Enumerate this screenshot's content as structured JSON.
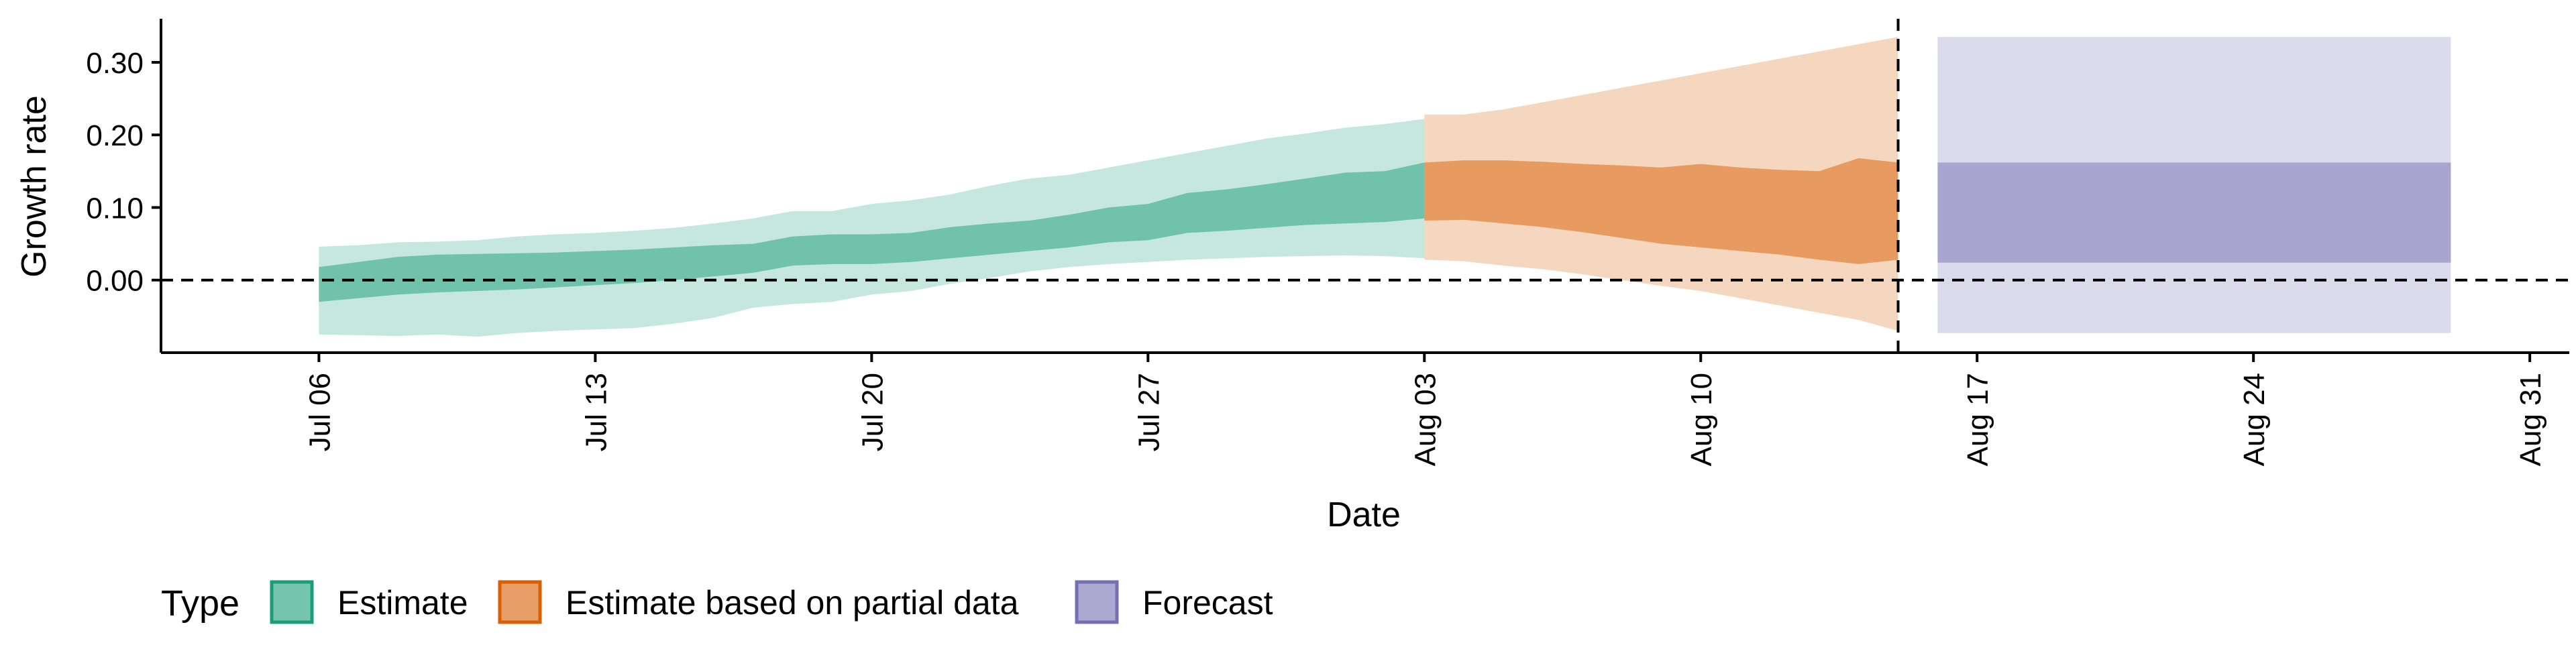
{
  "chart_data": {
    "type": "area",
    "xlabel": "Date",
    "ylabel": "Growth rate",
    "x_ticks": [
      "2020-07-06",
      "2020-07-13",
      "2020-07-20",
      "2020-07-27",
      "2020-08-03",
      "2020-08-10",
      "2020-08-17",
      "2020-08-24",
      "2020-08-31"
    ],
    "x_tick_labels": [
      "Jul 06",
      "Jul 13",
      "Jul 20",
      "Jul 27",
      "Aug 03",
      "Aug 10",
      "Aug 17",
      "Aug 24",
      "Aug 31"
    ],
    "y_ticks": [
      0.0,
      0.1,
      0.2,
      0.3
    ],
    "y_tick_labels": [
      "0.00",
      "0.10",
      "0.20",
      "0.30"
    ],
    "xlim": [
      "2020-07-02",
      "2020-09-01"
    ],
    "ylim": [
      -0.1,
      0.36
    ],
    "hline_y": 0,
    "vline_x": "2020-08-15",
    "grid": false,
    "legend": {
      "title": "Type",
      "position": "bottom-left",
      "entries": [
        "Estimate",
        "Estimate based on partial data",
        "Forecast"
      ]
    },
    "colors": {
      "Estimate": "#1b9e77",
      "Estimate based on partial data": "#d95f02",
      "Forecast": "#7570b3"
    },
    "series": [
      {
        "name": "Estimate",
        "points": [
          {
            "date": "2020-07-06",
            "lo90": -0.075,
            "lo50": -0.03,
            "hi50": 0.018,
            "hi90": 0.046
          },
          {
            "date": "2020-07-07",
            "lo90": -0.076,
            "lo50": -0.025,
            "hi50": 0.025,
            "hi90": 0.048
          },
          {
            "date": "2020-07-08",
            "lo90": -0.077,
            "lo50": -0.02,
            "hi50": 0.032,
            "hi90": 0.052
          },
          {
            "date": "2020-07-09",
            "lo90": -0.075,
            "lo50": -0.017,
            "hi50": 0.035,
            "hi90": 0.053
          },
          {
            "date": "2020-07-10",
            "lo90": -0.078,
            "lo50": -0.015,
            "hi50": 0.036,
            "hi90": 0.055
          },
          {
            "date": "2020-07-11",
            "lo90": -0.073,
            "lo50": -0.013,
            "hi50": 0.037,
            "hi90": 0.06
          },
          {
            "date": "2020-07-12",
            "lo90": -0.07,
            "lo50": -0.01,
            "hi50": 0.038,
            "hi90": 0.063
          },
          {
            "date": "2020-07-13",
            "lo90": -0.068,
            "lo50": -0.007,
            "hi50": 0.04,
            "hi90": 0.065
          },
          {
            "date": "2020-07-14",
            "lo90": -0.066,
            "lo50": -0.004,
            "hi50": 0.042,
            "hi90": 0.068
          },
          {
            "date": "2020-07-15",
            "lo90": -0.06,
            "lo50": 0.0,
            "hi50": 0.045,
            "hi90": 0.072
          },
          {
            "date": "2020-07-16",
            "lo90": -0.052,
            "lo50": 0.005,
            "hi50": 0.048,
            "hi90": 0.078
          },
          {
            "date": "2020-07-17",
            "lo90": -0.038,
            "lo50": 0.01,
            "hi50": 0.05,
            "hi90": 0.085
          },
          {
            "date": "2020-07-18",
            "lo90": -0.033,
            "lo50": 0.02,
            "hi50": 0.06,
            "hi90": 0.095
          },
          {
            "date": "2020-07-19",
            "lo90": -0.03,
            "lo50": 0.022,
            "hi50": 0.063,
            "hi90": 0.095
          },
          {
            "date": "2020-07-20",
            "lo90": -0.02,
            "lo50": 0.022,
            "hi50": 0.063,
            "hi90": 0.105
          },
          {
            "date": "2020-07-21",
            "lo90": -0.015,
            "lo50": 0.025,
            "hi50": 0.065,
            "hi90": 0.11
          },
          {
            "date": "2020-07-22",
            "lo90": -0.005,
            "lo50": 0.03,
            "hi50": 0.073,
            "hi90": 0.118
          },
          {
            "date": "2020-07-23",
            "lo90": 0.003,
            "lo50": 0.035,
            "hi50": 0.078,
            "hi90": 0.13
          },
          {
            "date": "2020-07-24",
            "lo90": 0.012,
            "lo50": 0.04,
            "hi50": 0.082,
            "hi90": 0.14
          },
          {
            "date": "2020-07-25",
            "lo90": 0.018,
            "lo50": 0.045,
            "hi50": 0.09,
            "hi90": 0.145
          },
          {
            "date": "2020-07-26",
            "lo90": 0.022,
            "lo50": 0.052,
            "hi50": 0.1,
            "hi90": 0.155
          },
          {
            "date": "2020-07-27",
            "lo90": 0.025,
            "lo50": 0.055,
            "hi50": 0.105,
            "hi90": 0.165
          },
          {
            "date": "2020-07-28",
            "lo90": 0.028,
            "lo50": 0.065,
            "hi50": 0.12,
            "hi90": 0.175
          },
          {
            "date": "2020-07-29",
            "lo90": 0.03,
            "lo50": 0.068,
            "hi50": 0.125,
            "hi90": 0.185
          },
          {
            "date": "2020-07-30",
            "lo90": 0.032,
            "lo50": 0.072,
            "hi50": 0.132,
            "hi90": 0.195
          },
          {
            "date": "2020-07-31",
            "lo90": 0.033,
            "lo50": 0.076,
            "hi50": 0.14,
            "hi90": 0.202
          },
          {
            "date": "2020-08-01",
            "lo90": 0.034,
            "lo50": 0.078,
            "hi50": 0.148,
            "hi90": 0.21
          },
          {
            "date": "2020-08-02",
            "lo90": 0.033,
            "lo50": 0.08,
            "hi50": 0.15,
            "hi90": 0.215
          },
          {
            "date": "2020-08-03",
            "lo90": 0.03,
            "lo50": 0.085,
            "hi50": 0.162,
            "hi90": 0.222
          }
        ]
      },
      {
        "name": "Estimate based on partial data",
        "points": [
          {
            "date": "2020-08-03",
            "lo90": 0.028,
            "lo50": 0.082,
            "hi50": 0.162,
            "hi90": 0.228
          },
          {
            "date": "2020-08-04",
            "lo90": 0.026,
            "lo50": 0.083,
            "hi50": 0.165,
            "hi90": 0.228
          },
          {
            "date": "2020-08-05",
            "lo90": 0.02,
            "lo50": 0.078,
            "hi50": 0.165,
            "hi90": 0.235
          },
          {
            "date": "2020-08-06",
            "lo90": 0.015,
            "lo50": 0.073,
            "hi50": 0.163,
            "hi90": 0.245
          },
          {
            "date": "2020-08-07",
            "lo90": 0.008,
            "lo50": 0.066,
            "hi50": 0.16,
            "hi90": 0.255
          },
          {
            "date": "2020-08-08",
            "lo90": 0.0,
            "lo50": 0.058,
            "hi50": 0.158,
            "hi90": 0.265
          },
          {
            "date": "2020-08-09",
            "lo90": -0.008,
            "lo50": 0.05,
            "hi50": 0.155,
            "hi90": 0.275
          },
          {
            "date": "2020-08-10",
            "lo90": -0.015,
            "lo50": 0.045,
            "hi50": 0.16,
            "hi90": 0.285
          },
          {
            "date": "2020-08-11",
            "lo90": -0.025,
            "lo50": 0.04,
            "hi50": 0.155,
            "hi90": 0.295
          },
          {
            "date": "2020-08-12",
            "lo90": -0.035,
            "lo50": 0.035,
            "hi50": 0.152,
            "hi90": 0.305
          },
          {
            "date": "2020-08-13",
            "lo90": -0.045,
            "lo50": 0.028,
            "hi50": 0.15,
            "hi90": 0.315
          },
          {
            "date": "2020-08-14",
            "lo90": -0.055,
            "lo50": 0.022,
            "hi50": 0.168,
            "hi90": 0.325
          },
          {
            "date": "2020-08-15",
            "lo90": -0.07,
            "lo50": 0.028,
            "hi50": 0.162,
            "hi90": 0.335
          }
        ]
      },
      {
        "name": "Forecast",
        "points": [
          {
            "date": "2020-08-16",
            "lo90": -0.073,
            "lo50": 0.024,
            "hi50": 0.162,
            "hi90": 0.335
          },
          {
            "date": "2020-08-29",
            "lo90": -0.073,
            "lo50": 0.024,
            "hi50": 0.162,
            "hi90": 0.335
          }
        ]
      }
    ]
  }
}
